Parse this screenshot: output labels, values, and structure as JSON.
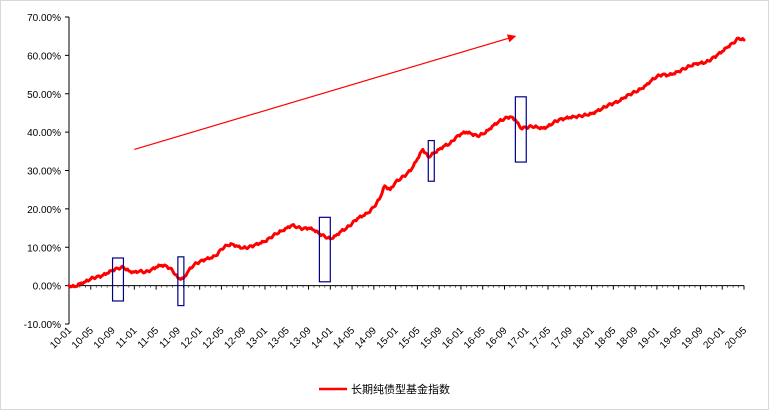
{
  "chart_data": {
    "type": "line",
    "title": "",
    "xlabel": "",
    "ylabel": "",
    "ylim": [
      -0.1,
      0.7
    ],
    "y_ticks": [
      "-10.00%",
      "0.00%",
      "10.00%",
      "20.00%",
      "30.00%",
      "40.00%",
      "50.00%",
      "60.00%",
      "70.00%"
    ],
    "y_tick_values": [
      -0.1,
      0.0,
      0.1,
      0.2,
      0.3,
      0.4,
      0.5,
      0.6,
      0.7
    ],
    "x_ticks": [
      "10-01",
      "10-05",
      "10-09",
      "11-01",
      "11-05",
      "11-09",
      "12-01",
      "12-05",
      "12-09",
      "13-01",
      "13-05",
      "13-09",
      "14-01",
      "14-05",
      "14-09",
      "15-01",
      "15-05",
      "15-09",
      "16-01",
      "16-05",
      "16-09",
      "17-01",
      "17-05",
      "17-09",
      "18-01",
      "18-05",
      "18-09",
      "19-01",
      "19-05",
      "19-09",
      "20-01",
      "20-05"
    ],
    "grid": false,
    "legend_position": "bottom",
    "series": [
      {
        "name": "长期纯债型基金指数",
        "color": "#ff0000",
        "points": [
          [
            "2010-01",
            0.0
          ],
          [
            "2010-02",
            -0.003
          ],
          [
            "2010-03",
            0.005
          ],
          [
            "2010-04",
            0.01
          ],
          [
            "2010-05",
            0.018
          ],
          [
            "2010-06",
            0.022
          ],
          [
            "2010-07",
            0.025
          ],
          [
            "2010-08",
            0.032
          ],
          [
            "2010-09",
            0.04
          ],
          [
            "2010-10",
            0.045
          ],
          [
            "2010-11",
            0.048
          ],
          [
            "2010-12",
            0.038
          ],
          [
            "2011-01",
            0.035
          ],
          [
            "2011-02",
            0.038
          ],
          [
            "2011-03",
            0.035
          ],
          [
            "2011-04",
            0.04
          ],
          [
            "2011-05",
            0.048
          ],
          [
            "2011-06",
            0.053
          ],
          [
            "2011-07",
            0.05
          ],
          [
            "2011-08",
            0.04
          ],
          [
            "2011-09",
            0.02
          ],
          [
            "2011-10",
            0.018
          ],
          [
            "2011-11",
            0.04
          ],
          [
            "2011-12",
            0.055
          ],
          [
            "2012-01",
            0.062
          ],
          [
            "2012-02",
            0.068
          ],
          [
            "2012-03",
            0.072
          ],
          [
            "2012-04",
            0.078
          ],
          [
            "2012-05",
            0.095
          ],
          [
            "2012-06",
            0.105
          ],
          [
            "2012-07",
            0.108
          ],
          [
            "2012-08",
            0.102
          ],
          [
            "2012-09",
            0.098
          ],
          [
            "2012-10",
            0.1
          ],
          [
            "2012-11",
            0.105
          ],
          [
            "2012-12",
            0.11
          ],
          [
            "2013-01",
            0.115
          ],
          [
            "2013-02",
            0.125
          ],
          [
            "2013-03",
            0.135
          ],
          [
            "2013-04",
            0.142
          ],
          [
            "2013-05",
            0.15
          ],
          [
            "2013-06",
            0.158
          ],
          [
            "2013-07",
            0.152
          ],
          [
            "2013-08",
            0.148
          ],
          [
            "2013-09",
            0.15
          ],
          [
            "2013-10",
            0.145
          ],
          [
            "2013-11",
            0.135
          ],
          [
            "2013-12",
            0.128
          ],
          [
            "2014-01",
            0.122
          ],
          [
            "2014-02",
            0.13
          ],
          [
            "2014-03",
            0.142
          ],
          [
            "2014-04",
            0.15
          ],
          [
            "2014-05",
            0.162
          ],
          [
            "2014-06",
            0.175
          ],
          [
            "2014-07",
            0.182
          ],
          [
            "2014-08",
            0.19
          ],
          [
            "2014-09",
            0.205
          ],
          [
            "2014-10",
            0.225
          ],
          [
            "2014-11",
            0.26
          ],
          [
            "2014-12",
            0.25
          ],
          [
            "2015-01",
            0.27
          ],
          [
            "2015-02",
            0.28
          ],
          [
            "2015-03",
            0.29
          ],
          [
            "2015-04",
            0.305
          ],
          [
            "2015-05",
            0.33
          ],
          [
            "2015-06",
            0.355
          ],
          [
            "2015-07",
            0.335
          ],
          [
            "2015-08",
            0.345
          ],
          [
            "2015-09",
            0.355
          ],
          [
            "2015-10",
            0.365
          ],
          [
            "2015-11",
            0.37
          ],
          [
            "2015-12",
            0.385
          ],
          [
            "2016-01",
            0.395
          ],
          [
            "2016-02",
            0.4
          ],
          [
            "2016-03",
            0.395
          ],
          [
            "2016-04",
            0.39
          ],
          [
            "2016-05",
            0.395
          ],
          [
            "2016-06",
            0.405
          ],
          [
            "2016-07",
            0.418
          ],
          [
            "2016-08",
            0.428
          ],
          [
            "2016-09",
            0.435
          ],
          [
            "2016-10",
            0.44
          ],
          [
            "2016-11",
            0.432
          ],
          [
            "2016-12",
            0.41
          ],
          [
            "2017-01",
            0.412
          ],
          [
            "2017-02",
            0.415
          ],
          [
            "2017-03",
            0.413
          ],
          [
            "2017-04",
            0.41
          ],
          [
            "2017-05",
            0.415
          ],
          [
            "2017-06",
            0.425
          ],
          [
            "2017-07",
            0.432
          ],
          [
            "2017-08",
            0.435
          ],
          [
            "2017-09",
            0.438
          ],
          [
            "2017-10",
            0.44
          ],
          [
            "2017-11",
            0.442
          ],
          [
            "2017-12",
            0.445
          ],
          [
            "2018-01",
            0.448
          ],
          [
            "2018-02",
            0.455
          ],
          [
            "2018-03",
            0.462
          ],
          [
            "2018-04",
            0.47
          ],
          [
            "2018-05",
            0.475
          ],
          [
            "2018-06",
            0.48
          ],
          [
            "2018-07",
            0.49
          ],
          [
            "2018-08",
            0.498
          ],
          [
            "2018-09",
            0.505
          ],
          [
            "2018-10",
            0.512
          ],
          [
            "2018-11",
            0.522
          ],
          [
            "2018-12",
            0.535
          ],
          [
            "2019-01",
            0.545
          ],
          [
            "2019-02",
            0.55
          ],
          [
            "2019-03",
            0.548
          ],
          [
            "2019-04",
            0.552
          ],
          [
            "2019-05",
            0.558
          ],
          [
            "2019-06",
            0.565
          ],
          [
            "2019-07",
            0.572
          ],
          [
            "2019-08",
            0.578
          ],
          [
            "2019-09",
            0.58
          ],
          [
            "2019-10",
            0.582
          ],
          [
            "2019-11",
            0.59
          ],
          [
            "2019-12",
            0.6
          ],
          [
            "2020-01",
            0.61
          ],
          [
            "2020-02",
            0.622
          ],
          [
            "2020-03",
            0.632
          ],
          [
            "2020-04",
            0.645
          ],
          [
            "2020-05",
            0.64
          ]
        ]
      }
    ],
    "annotations": {
      "arrow": {
        "from": [
          "2011-01",
          0.355
        ],
        "to": [
          "2016-11",
          0.65
        ],
        "color": "#ff0000"
      },
      "boxes": [
        {
          "x_from": "2010-09",
          "x_to": "2010-11",
          "y_from": -0.04,
          "y_to": 0.072,
          "color": "#00008b"
        },
        {
          "x_from": "2011-09",
          "x_to": "2011-10",
          "y_from": -0.052,
          "y_to": 0.075,
          "color": "#00008b"
        },
        {
          "x_from": "2013-11",
          "x_to": "2014-01",
          "y_from": 0.01,
          "y_to": 0.178,
          "color": "#00008b"
        },
        {
          "x_from": "2015-07",
          "x_to": "2015-08",
          "y_from": 0.272,
          "y_to": 0.378,
          "color": "#00008b"
        },
        {
          "x_from": "2016-11",
          "x_to": "2017-01",
          "y_from": 0.322,
          "y_to": 0.492,
          "color": "#00008b"
        }
      ]
    }
  }
}
